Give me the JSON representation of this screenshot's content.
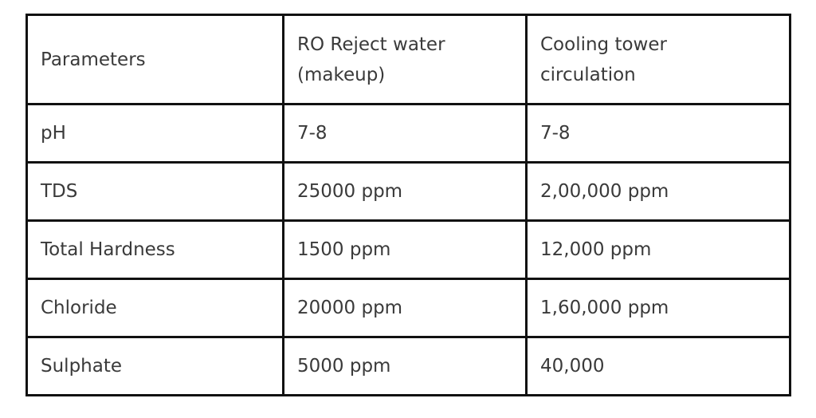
{
  "table": {
    "header": [
      [
        "Parameters"
      ],
      [
        "RO Reject water",
        "(makeup)"
      ],
      [
        "Cooling tower",
        "circulation"
      ]
    ],
    "rows": [
      [
        "pH",
        "7-8",
        "7-8"
      ],
      [
        "TDS",
        "25000 ppm",
        "2,00,000 ppm"
      ],
      [
        "Total Hardness",
        "1500 ppm",
        "12,000 ppm"
      ],
      [
        "Chloride",
        "20000 ppm",
        "1,60,000 ppm"
      ],
      [
        "Sulphate",
        "5000 ppm",
        "40,000"
      ]
    ]
  }
}
